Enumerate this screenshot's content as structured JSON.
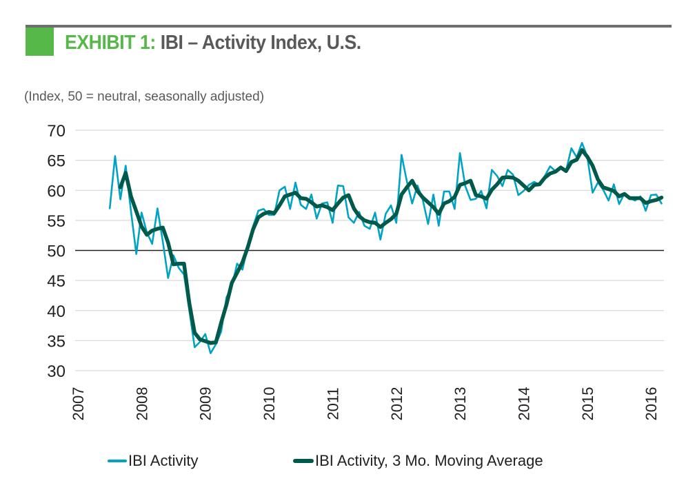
{
  "header": {
    "exhibit_label": "EXHIBIT 1:",
    "title": " IBI – Activity Index, U.S.",
    "subtitle": "(Index, 50 = neutral, seasonally adjusted)"
  },
  "colors": {
    "brand_green": "#55b848",
    "title_gray": "#58595b",
    "rule_gray": "#6d6e70",
    "series_light": "#00a3c4",
    "series_dark": "#005a4b",
    "grid": "#d9d9d9",
    "reference_line": "#231f20"
  },
  "chart_data": {
    "type": "line",
    "title": "EXHIBIT 1: IBI – Activity Index, U.S.",
    "subtitle": "(Index, 50 = neutral, seasonally adjusted)",
    "xlabel": "",
    "ylabel": "",
    "ylim": [
      30,
      70
    ],
    "yticks": [
      30,
      35,
      40,
      45,
      50,
      55,
      60,
      65,
      70
    ],
    "ytick_labels": [
      "30",
      "35",
      "40",
      "45",
      "50",
      "55",
      "60",
      "65",
      "70"
    ],
    "xlim": [
      2007.0,
      2016.25
    ],
    "xticks": [
      2007,
      2008,
      2009,
      2010,
      2011,
      2012,
      2013,
      2014,
      2015,
      2016
    ],
    "xtick_labels": [
      "2007",
      "2008",
      "2009",
      "2010",
      "2011",
      "2012",
      "2013",
      "2014",
      "2015",
      "2016"
    ],
    "grid": true,
    "reference_line": 50,
    "legend_position": "bottom",
    "frequency": "monthly",
    "series": [
      {
        "name": "IBI Activity",
        "start": "2007-07",
        "values": [
          57.0,
          65.7,
          58.5,
          64.1,
          56.5,
          49.4,
          56.3,
          53.0,
          51.1,
          57.0,
          51.5,
          45.4,
          49.2,
          47.1,
          46.0,
          40.0,
          33.9,
          34.8,
          36.1,
          32.9,
          34.4,
          36.5,
          42.2,
          44.0,
          47.8,
          46.8,
          50.7,
          54.0,
          56.6,
          56.9,
          55.9,
          55.9,
          60.0,
          60.6,
          56.9,
          61.3,
          57.6,
          56.9,
          59.3,
          55.3,
          57.8,
          58.0,
          54.6,
          60.8,
          60.7,
          55.5,
          54.6,
          56.4,
          54.1,
          53.6,
          56.3,
          51.8,
          56.1,
          57.5,
          54.6,
          65.9,
          61.5,
          57.8,
          60.8,
          58.4,
          54.4,
          59.3,
          54.1,
          59.8,
          59.8,
          56.9,
          66.2,
          60.7,
          58.4,
          58.6,
          59.9,
          57.0,
          63.4,
          62.4,
          60.7,
          63.4,
          62.6,
          59.2,
          59.9,
          60.9,
          61.4,
          60.9,
          62.4,
          64.0,
          63.2,
          63.8,
          63.3,
          67.0,
          65.5,
          67.9,
          65.6,
          59.6,
          61.3,
          60.1,
          58.3,
          61.0,
          57.7,
          59.5,
          58.7,
          58.3,
          59.0,
          56.6,
          59.2,
          59.3,
          57.8
        ]
      },
      {
        "name": "IBI Activity, 3 Mo. Moving Average",
        "start": "2007-09",
        "values": [
          60.5,
          62.9,
          59.0,
          56.5,
          54.0,
          52.6,
          53.3,
          53.6,
          53.8,
          51.3,
          47.7,
          47.8,
          47.8,
          41.2,
          36.3,
          35.2,
          34.9,
          34.6,
          34.7,
          38.0,
          41.0,
          44.6,
          46.3,
          48.0,
          50.5,
          53.5,
          55.5,
          56.1,
          56.4,
          56.2,
          57.5,
          59.0,
          59.3,
          59.6,
          58.7,
          58.6,
          58.0,
          57.3,
          57.5,
          57.2,
          56.7,
          57.8,
          58.8,
          59.2,
          57.0,
          55.7,
          55.0,
          54.7,
          54.6,
          53.9,
          54.6,
          55.2,
          56.1,
          59.3,
          60.5,
          61.6,
          59.9,
          58.8,
          58.0,
          57.2,
          56.1,
          57.8,
          58.2,
          58.9,
          60.9,
          61.2,
          61.6,
          59.2,
          59.0,
          58.6,
          60.1,
          61.0,
          62.1,
          62.2,
          62.1,
          61.6,
          60.8,
          60.0,
          60.9,
          61.0,
          62.1,
          62.8,
          63.1,
          63.8,
          63.2,
          64.7,
          65.1,
          66.7,
          65.6,
          64.1,
          61.8,
          60.5,
          60.2,
          59.9,
          59.0,
          59.4,
          58.7,
          58.7,
          58.7,
          57.9,
          58.2,
          58.4,
          58.8
        ]
      }
    ]
  },
  "legend": {
    "items": [
      {
        "label": "IBI Activity"
      },
      {
        "label": "IBI Activity, 3 Mo. Moving Average"
      }
    ]
  }
}
